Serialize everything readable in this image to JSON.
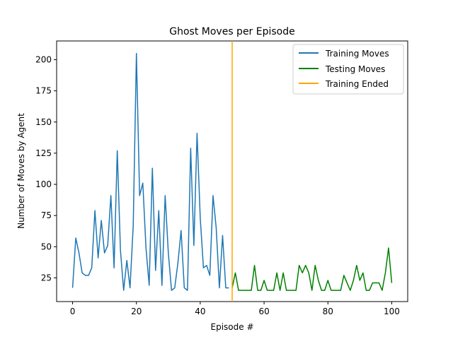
{
  "chart_data": {
    "type": "line",
    "title": "Ghost Moves per Episode",
    "xlabel": "Episode #",
    "ylabel": "Number of Moves by Agent",
    "xlim": [
      -5,
      105
    ],
    "ylim": [
      6,
      215
    ],
    "xticks": [
      0,
      20,
      40,
      60,
      80,
      100
    ],
    "yticks": [
      25,
      50,
      75,
      100,
      125,
      150,
      175,
      200
    ],
    "grid": false,
    "legend_position": "top-right",
    "series": [
      {
        "name": "Training Moves",
        "color": "#1f77b4",
        "x": [
          0,
          1,
          2,
          3,
          4,
          5,
          6,
          7,
          8,
          9,
          10,
          11,
          12,
          13,
          14,
          15,
          16,
          17,
          18,
          19,
          20,
          21,
          22,
          23,
          24,
          25,
          26,
          27,
          28,
          29,
          30,
          31,
          32,
          33,
          34,
          35,
          36,
          37,
          38,
          39,
          40,
          41,
          42,
          43,
          44,
          45,
          46,
          47,
          48,
          49
        ],
        "values": [
          17,
          57,
          45,
          29,
          27,
          27,
          33,
          79,
          41,
          71,
          45,
          51,
          91,
          33,
          127,
          47,
          15,
          39,
          17,
          67,
          205,
          91,
          101,
          49,
          19,
          113,
          31,
          79,
          19,
          91,
          45,
          15,
          17,
          37,
          63,
          17,
          15,
          129,
          51,
          141,
          73,
          33,
          35,
          27,
          91,
          65,
          17,
          59,
          17,
          17
        ]
      },
      {
        "name": "Testing Moves",
        "color": "#008000",
        "x": [
          50,
          51,
          52,
          53,
          54,
          55,
          56,
          57,
          58,
          59,
          60,
          61,
          62,
          63,
          64,
          65,
          66,
          67,
          68,
          69,
          70,
          71,
          72,
          73,
          74,
          75,
          76,
          77,
          78,
          79,
          80,
          81,
          82,
          83,
          84,
          85,
          86,
          87,
          88,
          89,
          90,
          91,
          92,
          93,
          94,
          95,
          96,
          97,
          98,
          99,
          100
        ],
        "values": [
          17,
          29,
          15,
          15,
          15,
          15,
          15,
          35,
          15,
          15,
          23,
          15,
          15,
          15,
          29,
          15,
          29,
          15,
          15,
          15,
          15,
          35,
          29,
          35,
          29,
          15,
          35,
          23,
          15,
          15,
          23,
          15,
          15,
          15,
          15,
          27,
          21,
          15,
          23,
          35,
          23,
          29,
          15,
          15,
          21,
          21,
          21,
          15,
          29,
          49,
          21
        ]
      },
      {
        "name": "Training Ended",
        "color": "#ffa500",
        "type": "vline",
        "x_value": 50
      }
    ]
  }
}
